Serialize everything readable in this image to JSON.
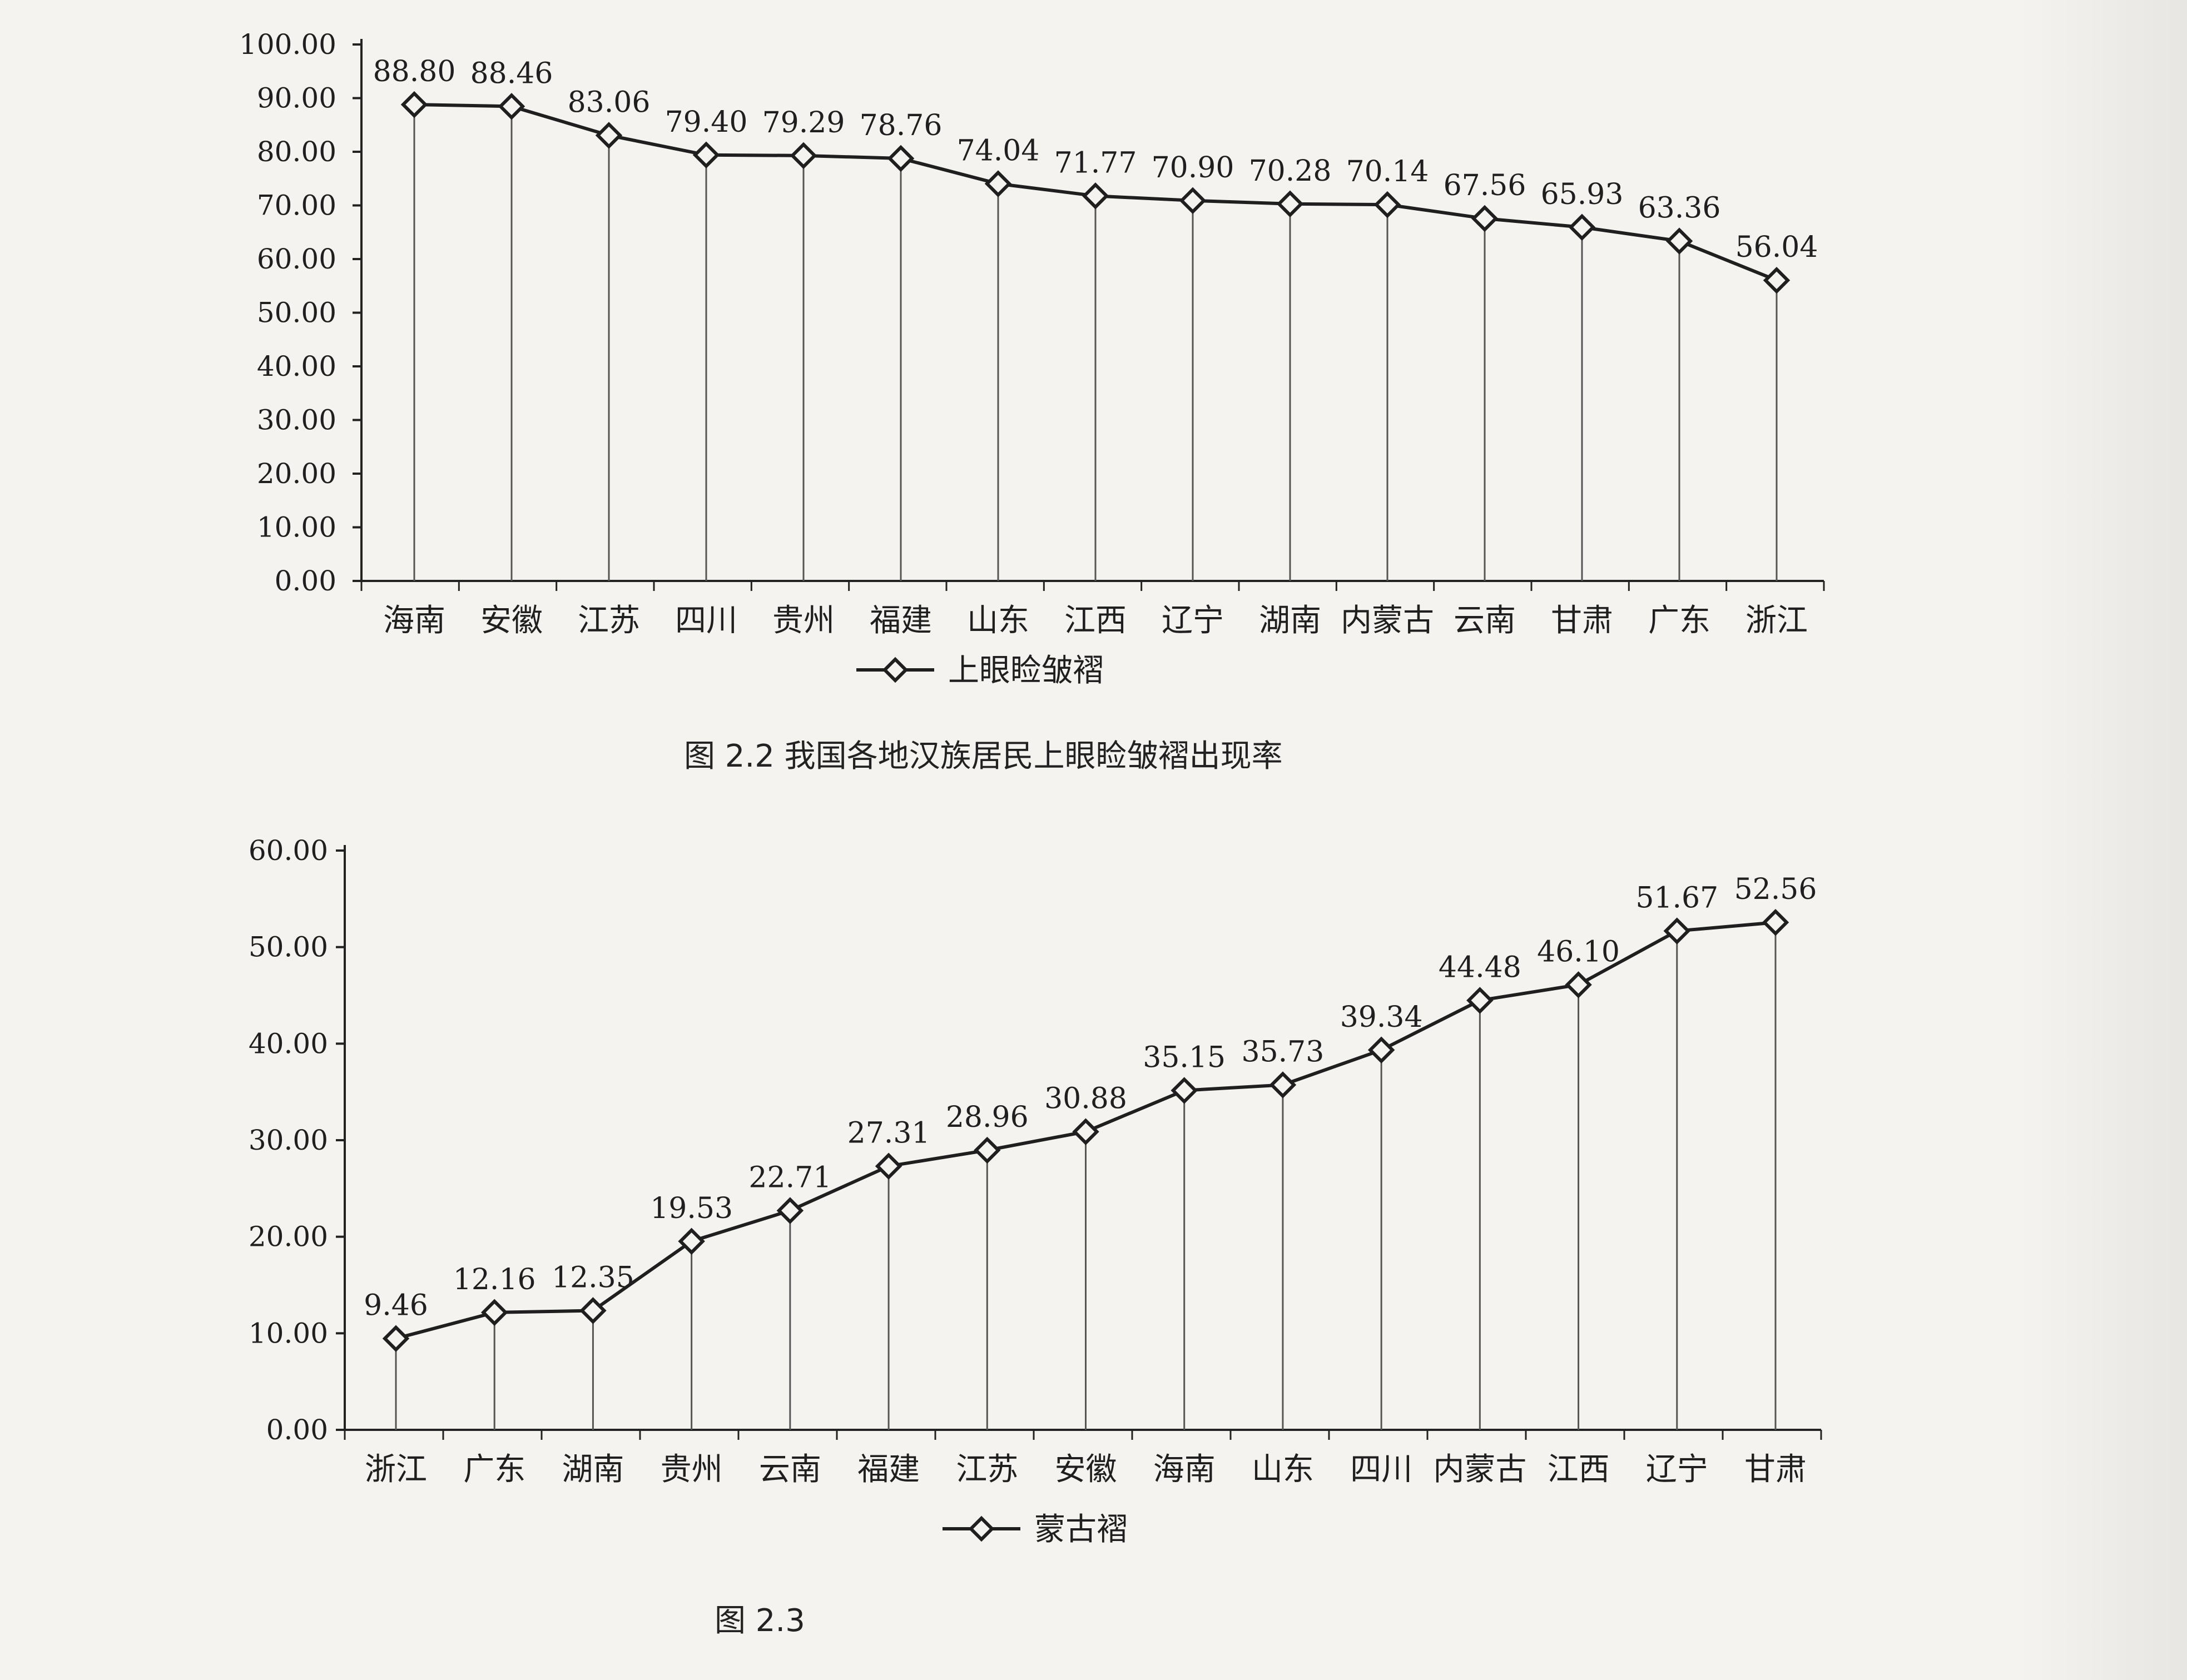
{
  "charts": [
    {
      "caption": "图 2.2   我国各地汉族居民上眼睑皱褶出现率",
      "chart_data": {
        "type": "line",
        "categories": [
          "海南",
          "安徽",
          "江苏",
          "四川",
          "贵州",
          "福建",
          "山东",
          "江西",
          "辽宁",
          "湖南",
          "内蒙古",
          "云南",
          "甘肃",
          "广东",
          "浙江"
        ],
        "series": [
          {
            "name": "上眼睑皱褶",
            "values": [
              88.8,
              88.46,
              83.06,
              79.4,
              79.29,
              78.76,
              74.04,
              71.77,
              70.9,
              70.28,
              70.14,
              67.56,
              65.93,
              63.36,
              56.04
            ]
          }
        ],
        "data_labels": [
          "88.80",
          "88.46",
          "83.06",
          "79.40",
          "79.29",
          "78.76",
          "74.04",
          "71.77",
          "70.90",
          "70.28",
          "70.14",
          "67.56",
          "65.93",
          "63.36",
          "56.04"
        ],
        "yticks": [
          "0.00",
          "10.00",
          "20.00",
          "30.00",
          "40.00",
          "50.00",
          "60.00",
          "70.00",
          "80.00",
          "90.00",
          "100.00"
        ],
        "ylim": [
          0,
          100
        ],
        "grid": "vertical drop lines",
        "legend_position": "bottom-center",
        "marker": "diamond",
        "line_color": "#1f1f1f"
      }
    },
    {
      "caption": "图 2.3",
      "chart_data": {
        "type": "line",
        "categories": [
          "浙江",
          "广东",
          "湖南",
          "贵州",
          "云南",
          "福建",
          "江苏",
          "安徽",
          "海南",
          "山东",
          "四川",
          "内蒙古",
          "江西",
          "辽宁",
          "甘肃"
        ],
        "series": [
          {
            "name": "蒙古褶",
            "values": [
              9.46,
              12.16,
              12.35,
              19.53,
              22.71,
              27.31,
              28.96,
              30.88,
              35.15,
              35.73,
              39.34,
              44.48,
              46.1,
              51.67,
              52.56
            ]
          }
        ],
        "data_labels": [
          "9.46",
          "12.16",
          "12.35",
          "19.53",
          "22.71",
          "27.31",
          "28.96",
          "30.88",
          "35.15",
          "35.73",
          "39.34",
          "44.48",
          "46.10",
          "51.67",
          "52.56"
        ],
        "yticks": [
          "0.00",
          "10.00",
          "20.00",
          "30.00",
          "40.00",
          "50.00",
          "60.00"
        ],
        "ylim": [
          0,
          60
        ],
        "grid": "vertical drop lines",
        "legend_position": "bottom-center",
        "marker": "diamond",
        "line_color": "#1f1f1f"
      }
    }
  ]
}
